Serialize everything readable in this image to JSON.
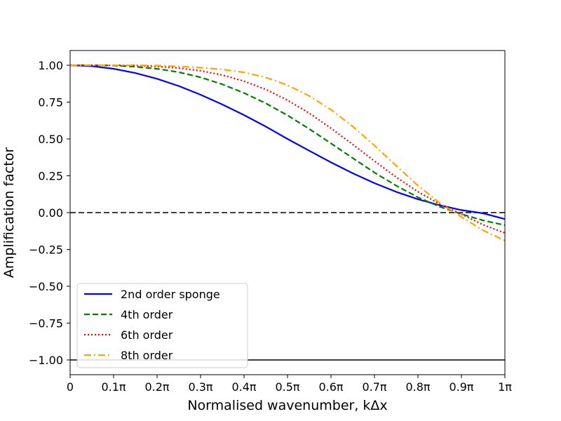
{
  "chart_data": {
    "type": "line",
    "title": "",
    "xlabel": "Normalised wavenumber, kΔx",
    "ylabel": "Amplification factor",
    "xlim": [
      0,
      1
    ],
    "ylim": [
      -1.1,
      1.1
    ],
    "x_unit": "π",
    "grid": false,
    "legend_position": "lower-left",
    "x_ticks": [
      {
        "value": 0.0,
        "label": "0"
      },
      {
        "value": 0.1,
        "label": "0.1π"
      },
      {
        "value": 0.2,
        "label": "0.2π"
      },
      {
        "value": 0.3,
        "label": "0.3π"
      },
      {
        "value": 0.4,
        "label": "0.4π"
      },
      {
        "value": 0.5,
        "label": "0.5π"
      },
      {
        "value": 0.6,
        "label": "0.6π"
      },
      {
        "value": 0.7,
        "label": "0.7π"
      },
      {
        "value": 0.8,
        "label": "0.8π"
      },
      {
        "value": 0.9,
        "label": "0.9π"
      },
      {
        "value": 1.0,
        "label": "1π"
      }
    ],
    "y_ticks": [
      {
        "value": 1.0,
        "label": "1.00"
      },
      {
        "value": 0.75,
        "label": "0.75"
      },
      {
        "value": 0.5,
        "label": "0.50"
      },
      {
        "value": 0.25,
        "label": "0.25"
      },
      {
        "value": 0.0,
        "label": "0.00"
      },
      {
        "value": -0.25,
        "label": "−0.25"
      },
      {
        "value": -0.5,
        "label": "−0.50"
      },
      {
        "value": -0.75,
        "label": "−0.75"
      },
      {
        "value": -1.0,
        "label": "−1.00"
      }
    ],
    "reference_lines": [
      {
        "y": 0.0,
        "color": "#000000",
        "style": "dashed"
      },
      {
        "y": -1.0,
        "color": "#000000",
        "style": "solid"
      }
    ],
    "x": [
      0.0,
      0.05,
      0.1,
      0.15,
      0.2,
      0.25,
      0.3,
      0.35,
      0.4,
      0.45,
      0.5,
      0.55,
      0.6,
      0.65,
      0.7,
      0.75,
      0.8,
      0.85,
      0.9,
      0.95,
      1.0
    ],
    "series": [
      {
        "name": "2nd order sponge",
        "color": "#0000ff",
        "style": "solid",
        "values": [
          1.0,
          0.994,
          0.976,
          0.947,
          0.908,
          0.859,
          0.8,
          0.734,
          0.662,
          0.584,
          0.5,
          0.42,
          0.341,
          0.267,
          0.2,
          0.141,
          0.091,
          0.05,
          0.017,
          -0.005,
          -0.044
        ]
      },
      {
        "name": "4th order",
        "color": "#008000",
        "style": "dashed",
        "values": [
          1.0,
          1.0,
          0.998,
          0.99,
          0.976,
          0.953,
          0.918,
          0.871,
          0.812,
          0.742,
          0.66,
          0.568,
          0.47,
          0.37,
          0.272,
          0.183,
          0.104,
          0.04,
          -0.01,
          -0.053,
          -0.085
        ]
      },
      {
        "name": "6th order",
        "color": "#ff0000",
        "style": "dotted",
        "values": [
          1.0,
          1.0,
          1.0,
          0.998,
          0.992,
          0.981,
          0.963,
          0.934,
          0.892,
          0.836,
          0.763,
          0.675,
          0.573,
          0.463,
          0.35,
          0.241,
          0.142,
          0.058,
          -0.01,
          -0.083,
          -0.138
        ]
      },
      {
        "name": "8th order",
        "color": "#ffa500",
        "style": "dashdot",
        "values": [
          1.0,
          1.0,
          1.0,
          1.0,
          0.998,
          0.993,
          0.984,
          0.972,
          0.952,
          0.917,
          0.865,
          0.792,
          0.698,
          0.585,
          0.455,
          0.318,
          0.184,
          0.066,
          -0.03,
          -0.12,
          -0.19
        ]
      }
    ]
  }
}
